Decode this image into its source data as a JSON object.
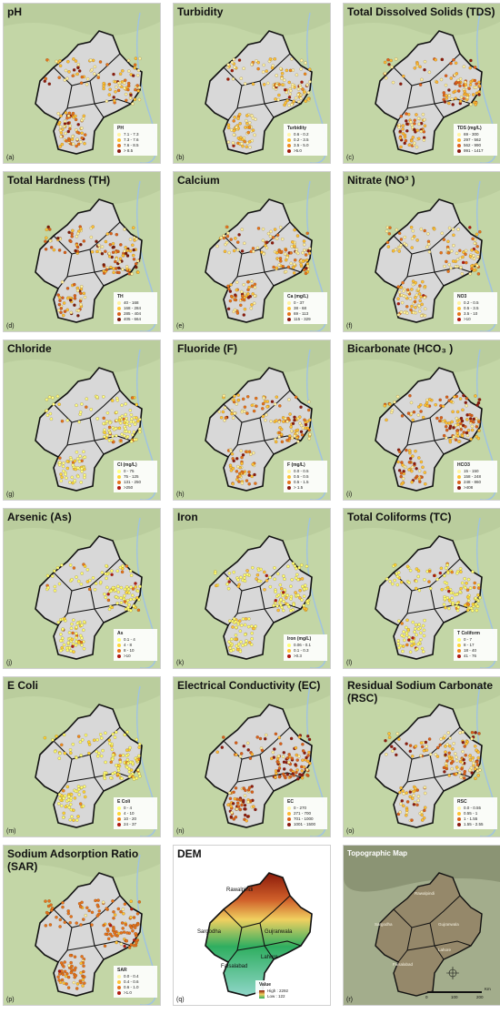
{
  "panels": [
    {
      "title": "pH",
      "letter": "(a)",
      "legend_title": "PH",
      "items": [
        "7.1 - 7.3",
        "7.3 - 7.6",
        "7.6 - 8.5",
        "> 8.5"
      ],
      "colors": [
        "#fff3a0",
        "#ffc233",
        "#e6731a",
        "#8b1a10"
      ],
      "dist": [
        0.3,
        0.35,
        0.25,
        0.1
      ]
    },
    {
      "title": "Turbidity",
      "letter": "(b)",
      "legend_title": "Turbidity",
      "items": [
        "0.6 - 0.2",
        "0.2 - 3.5",
        "3.5 - 5.0",
        ">5.0"
      ],
      "colors": [
        "#fff5a8",
        "#ffc233",
        "#f08a1a",
        "#a01a0a"
      ],
      "dist": [
        0.55,
        0.3,
        0.1,
        0.05
      ]
    },
    {
      "title": "Total Dissolved Solids (TDS)",
      "letter": "(c)",
      "legend_title": "TDS (mg/L)",
      "items": [
        "69 - 300",
        "297 - 562",
        "562 - 990",
        "991 - 1417"
      ],
      "colors": [
        "#fff3a0",
        "#ffb833",
        "#e0601a",
        "#8b1a10"
      ],
      "dist": [
        0.3,
        0.3,
        0.25,
        0.15
      ]
    },
    {
      "title": "Total Hardness (TH)",
      "letter": "(d)",
      "legend_title": "TH",
      "items": [
        "40 - 168",
        "168 - 284",
        "285 - 404",
        "405 - 664"
      ],
      "colors": [
        "#fff3a0",
        "#ffc233",
        "#d9601a",
        "#7a1a0a"
      ],
      "dist": [
        0.3,
        0.3,
        0.25,
        0.15
      ]
    },
    {
      "title": "Calcium",
      "letter": "(e)",
      "legend_title": "Ca (mg/L)",
      "items": [
        "0 - 37",
        "38 - 68",
        "69 - 113",
        "115 - 329"
      ],
      "colors": [
        "#fff3a0",
        "#ffc233",
        "#e6731a",
        "#8b1a10"
      ],
      "dist": [
        0.3,
        0.3,
        0.28,
        0.12
      ]
    },
    {
      "title": "Nitrate (NO³ )",
      "letter": "(f)",
      "legend_title": "NO3",
      "items": [
        "0.2 - 0.5",
        "0.5 - 3.5",
        "3.5 - 10",
        ">10"
      ],
      "colors": [
        "#fff3a0",
        "#ffc233",
        "#e6731a",
        "#b01a10"
      ],
      "dist": [
        0.45,
        0.3,
        0.2,
        0.05
      ]
    },
    {
      "title": "Chloride",
      "letter": "(g)",
      "legend_title": "Cl (mg/L)",
      "items": [
        "0 - 75",
        "75 - 125",
        "131 - 250",
        ">250"
      ],
      "colors": [
        "#ffff80",
        "#ffd633",
        "#e6731a",
        "#b01a10"
      ],
      "dist": [
        0.75,
        0.15,
        0.08,
        0.02
      ]
    },
    {
      "title": "Fluoride (F)",
      "letter": "(h)",
      "legend_title": "F (mg/L)",
      "items": [
        "0.0 - 0.5",
        "0.5 - 0.5",
        "0.5 - 1.5",
        "> 1.5"
      ],
      "colors": [
        "#fff3a0",
        "#ffc233",
        "#e6731a",
        "#8b1a10"
      ],
      "dist": [
        0.3,
        0.35,
        0.25,
        0.1
      ]
    },
    {
      "title": "Bicarbonate (HCO₃ )",
      "letter": "(i)",
      "legend_title": "HCO3",
      "items": [
        "15 - 150",
        "158 - 248",
        "248 - 860",
        ">408"
      ],
      "colors": [
        "#fff3a0",
        "#ffc233",
        "#d9601a",
        "#8b1a10"
      ],
      "dist": [
        0.2,
        0.35,
        0.3,
        0.15
      ]
    },
    {
      "title": "Arsenic (As)",
      "letter": "(j)",
      "legend_title": "As",
      "items": [
        "0.1 - 4",
        "4 - 8",
        "8 - 10",
        ">10"
      ],
      "colors": [
        "#ffff70",
        "#ffd633",
        "#e6731a",
        "#b01a10"
      ],
      "dist": [
        0.8,
        0.12,
        0.06,
        0.02
      ]
    },
    {
      "title": "Iron",
      "letter": "(k)",
      "legend_title": "Iron (mg/L)",
      "items": [
        "0.06 - 0.1",
        "0.1 - 0.3",
        ">0.3"
      ],
      "colors": [
        "#ffff70",
        "#ffc233",
        "#b01a10"
      ],
      "dist": [
        0.75,
        0.2,
        0.05
      ]
    },
    {
      "title": "Total Coliforms (TC)",
      "letter": "(l)",
      "legend_title": "T Coliform",
      "items": [
        "0 - 7",
        "8 - 17",
        "18 - 40",
        "41 - 76"
      ],
      "colors": [
        "#ffff70",
        "#ffd633",
        "#f08a1a",
        "#b01a10"
      ],
      "dist": [
        0.7,
        0.18,
        0.1,
        0.02
      ]
    },
    {
      "title": "E Coli",
      "letter": "(m)",
      "legend_title": "E Coli",
      "items": [
        "0 - 4",
        "4 - 10",
        "10 - 20",
        "24 - 37"
      ],
      "colors": [
        "#ffff70",
        "#ffd633",
        "#f08a1a",
        "#b01a10"
      ],
      "dist": [
        0.72,
        0.18,
        0.08,
        0.02
      ]
    },
    {
      "title": "Electrical Conductivity (EC)",
      "letter": "(n)",
      "legend_title": "EC",
      "items": [
        "0 - 270",
        "271 - 700",
        "701 - 1000",
        "1001 - 1500"
      ],
      "colors": [
        "#fff3a0",
        "#ffb833",
        "#d9601a",
        "#8b1a10"
      ],
      "dist": [
        0.15,
        0.25,
        0.3,
        0.3
      ]
    },
    {
      "title": "Residual Sodium Carbonate (RSC)",
      "letter": "(o)",
      "legend_title": "RSC",
      "items": [
        "0.0 - 0.55",
        "0.55 - 1",
        "1 - 1.55",
        "1.55 - 2.55"
      ],
      "colors": [
        "#fff3a0",
        "#ffc233",
        "#d9601a",
        "#8b1a10"
      ],
      "dist": [
        0.3,
        0.3,
        0.25,
        0.15
      ]
    },
    {
      "title": "Sodium Adsorption Ratio (SAR)",
      "letter": "(p)",
      "legend_title": "SAR",
      "items": [
        "0.0 - 0.4",
        "0.4 - 0.6",
        "0.6 - 1.0",
        ">1.0"
      ],
      "colors": [
        "#fff3a0",
        "#ffc233",
        "#e6731a",
        "#b01a10"
      ],
      "dist": [
        0.05,
        0.1,
        0.8,
        0.05
      ]
    }
  ],
  "dem": {
    "title": "DEM",
    "letter": "(q)",
    "legend_title": "Value",
    "high_label": "High : 2292",
    "low_label": "Low : 122",
    "regions": [
      "Rawalpindi",
      "Sargodha",
      "Gujranwala",
      "Lahore",
      "Faisalabad"
    ],
    "colors": {
      "high": "#8b1a0a",
      "mid": "#f0d060",
      "low": "#2fae60"
    }
  },
  "topo": {
    "title": "Topographic Map",
    "letter": "(r)",
    "regions": [
      "Rawalpindi",
      "Sargodha",
      "Gujranwala",
      "Faisalabad",
      "Lahore"
    ],
    "scale": [
      "0",
      "100",
      "200"
    ],
    "scale_unit": "Km"
  },
  "colors": {
    "base": "#e6e8df",
    "terrain_green": "#c3d6a6",
    "district_fill": "#d8d8d8",
    "border": "#111111",
    "river": "#9fc2e2"
  }
}
